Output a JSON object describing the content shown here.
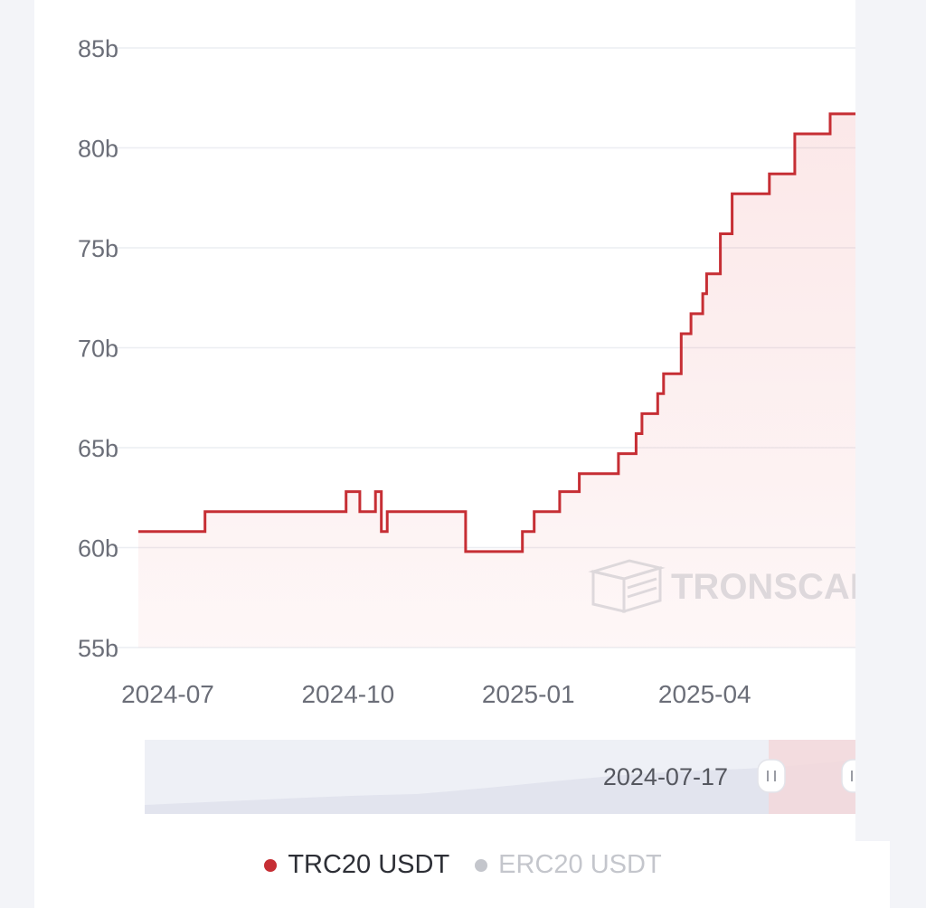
{
  "chart_data": {
    "type": "line",
    "step": true,
    "y_ticks": [
      "85b",
      "80b",
      "75b",
      "70b",
      "65b",
      "60b",
      "55b"
    ],
    "x_ticks": [
      "2024-07",
      "2024-10",
      "2025-01",
      "2025-04"
    ],
    "ylim": [
      55,
      85
    ],
    "xlim": [
      "2024-06-16",
      "2025-06-24"
    ],
    "grid": true,
    "watermark": "TRONSCAN",
    "series": [
      {
        "name": "TRC20 USDT",
        "color": "#c62e34",
        "visible": true,
        "points": [
          [
            "2024-06-16",
            60.8
          ],
          [
            "2024-07-20",
            60.8
          ],
          [
            "2024-07-20",
            61.8
          ],
          [
            "2024-09-30",
            61.8
          ],
          [
            "2024-09-30",
            62.8
          ],
          [
            "2024-10-07",
            62.8
          ],
          [
            "2024-10-07",
            61.8
          ],
          [
            "2024-10-15",
            61.8
          ],
          [
            "2024-10-15",
            62.8
          ],
          [
            "2024-10-18",
            62.8
          ],
          [
            "2024-10-18",
            60.8
          ],
          [
            "2024-10-21",
            60.8
          ],
          [
            "2024-10-21",
            61.8
          ],
          [
            "2024-11-30",
            61.8
          ],
          [
            "2024-11-30",
            59.8
          ],
          [
            "2024-12-29",
            59.8
          ],
          [
            "2024-12-29",
            60.8
          ],
          [
            "2025-01-04",
            60.8
          ],
          [
            "2025-01-04",
            61.8
          ],
          [
            "2025-01-17",
            61.8
          ],
          [
            "2025-01-17",
            62.8
          ],
          [
            "2025-01-27",
            62.8
          ],
          [
            "2025-01-27",
            63.7
          ],
          [
            "2025-02-16",
            63.7
          ],
          [
            "2025-02-16",
            64.7
          ],
          [
            "2025-02-25",
            64.7
          ],
          [
            "2025-02-25",
            65.7
          ],
          [
            "2025-02-28",
            65.7
          ],
          [
            "2025-02-28",
            66.7
          ],
          [
            "2025-03-08",
            66.7
          ],
          [
            "2025-03-08",
            67.7
          ],
          [
            "2025-03-11",
            67.7
          ],
          [
            "2025-03-11",
            68.7
          ],
          [
            "2025-03-20",
            68.7
          ],
          [
            "2025-03-20",
            70.7
          ],
          [
            "2025-03-25",
            70.7
          ],
          [
            "2025-03-25",
            71.7
          ],
          [
            "2025-03-31",
            71.7
          ],
          [
            "2025-03-31",
            72.7
          ],
          [
            "2025-04-02",
            72.7
          ],
          [
            "2025-04-02",
            73.7
          ],
          [
            "2025-04-09",
            73.7
          ],
          [
            "2025-04-09",
            75.7
          ],
          [
            "2025-04-15",
            75.7
          ],
          [
            "2025-04-15",
            77.7
          ],
          [
            "2025-05-04",
            77.7
          ],
          [
            "2025-05-04",
            78.7
          ],
          [
            "2025-05-17",
            78.7
          ],
          [
            "2025-05-17",
            80.7
          ],
          [
            "2025-06-04",
            80.7
          ],
          [
            "2025-06-04",
            81.7
          ],
          [
            "2025-06-24",
            81.7
          ]
        ]
      },
      {
        "name": "ERC20 USDT",
        "color": "#c4c6cc",
        "visible": false
      }
    ],
    "zoom": {
      "start_label": "2024-07-17"
    }
  }
}
